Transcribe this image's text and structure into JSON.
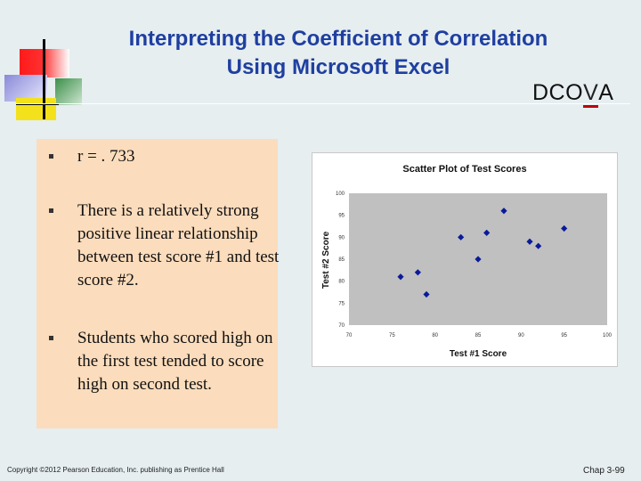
{
  "slide": {
    "title_line1": "Interpreting the Coefficient of Correlation",
    "title_line2": "Using Microsoft Excel",
    "brand": "DCOVA",
    "brand_parts": [
      "DCO",
      "V",
      "A"
    ],
    "bullets": [
      "r = . 733",
      "There is a relatively strong positive linear relationship between test score #1 and test score #2.",
      "Students who scored high on the first test tended to score high on second test."
    ],
    "footer_left": "Copyright ©2012 Pearson Education, Inc. publishing as Prentice Hall",
    "footer_right": "Chap 3-99"
  },
  "colors": {
    "title": "#1f3fa0",
    "panel": "#fbdcbc",
    "plot_area": "#c0c0c0",
    "marker": "#0a1a9a",
    "brand_underline": "#c00000"
  },
  "chart_data": {
    "type": "scatter",
    "title": "Scatter Plot of Test Scores",
    "xlabel": "Test #1 Score",
    "ylabel": "Test #2 Score",
    "xlim": [
      70,
      100
    ],
    "ylim": [
      70,
      100
    ],
    "xticks": [
      70,
      75,
      80,
      85,
      90,
      95,
      100
    ],
    "yticks": [
      70,
      75,
      80,
      85,
      90,
      95,
      100
    ],
    "grid": false,
    "legend": "none",
    "series": [
      {
        "points": [
          {
            "x": 76,
            "y": 81
          },
          {
            "x": 78,
            "y": 82
          },
          {
            "x": 79,
            "y": 77
          },
          {
            "x": 83,
            "y": 90
          },
          {
            "x": 85,
            "y": 85
          },
          {
            "x": 86,
            "y": 91
          },
          {
            "x": 88,
            "y": 96
          },
          {
            "x": 91,
            "y": 89
          },
          {
            "x": 92,
            "y": 88
          },
          {
            "x": 95,
            "y": 92
          }
        ]
      }
    ]
  }
}
